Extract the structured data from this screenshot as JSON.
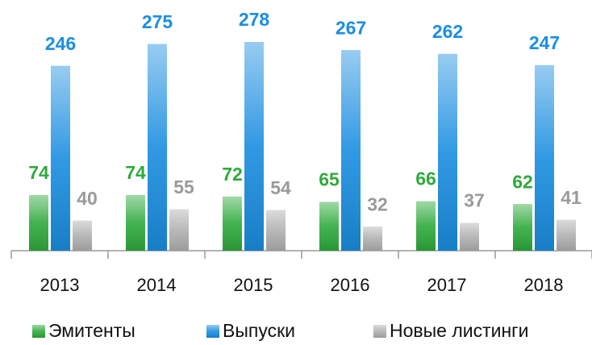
{
  "chart_data": {
    "type": "bar",
    "categories": [
      "2013",
      "2014",
      "2015",
      "2016",
      "2017",
      "2018"
    ],
    "series": [
      {
        "name": "Эмитенты",
        "color": "#2eaa3c",
        "values": [
          74,
          74,
          72,
          65,
          66,
          62
        ]
      },
      {
        "name": "Выпуски",
        "color": "#1a8ee0",
        "values": [
          246,
          275,
          278,
          267,
          262,
          247
        ]
      },
      {
        "name": "Новые листинги",
        "color": "#b0b0b0",
        "values": [
          40,
          55,
          54,
          32,
          37,
          41
        ]
      }
    ],
    "legend": "bottom"
  }
}
